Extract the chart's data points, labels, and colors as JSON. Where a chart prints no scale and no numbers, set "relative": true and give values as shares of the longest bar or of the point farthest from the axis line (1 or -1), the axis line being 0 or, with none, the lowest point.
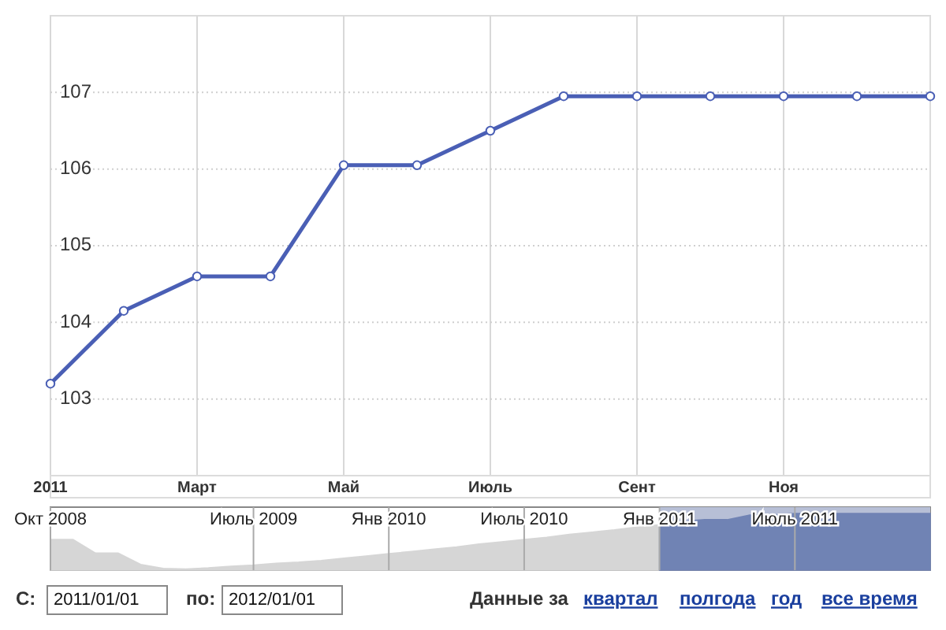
{
  "chart_data": [
    {
      "type": "line",
      "categories": [
        "2011",
        null,
        "Март",
        null,
        "Май",
        null,
        "Июль",
        null,
        "Сент",
        null,
        "Ноя",
        null,
        null
      ],
      "series": [
        {
          "color": "#4a5fb5",
          "values": [
            103.2,
            104.15,
            104.6,
            104.6,
            106.05,
            106.05,
            106.5,
            106.95,
            106.95,
            106.95,
            106.95,
            106.95,
            106.95
          ]
        }
      ],
      "ylim": [
        102,
        108
      ],
      "yticks": [
        103,
        104,
        105,
        106,
        107
      ],
      "grid": true,
      "marker": "circle",
      "line_style": "solid"
    },
    {
      "type": "area",
      "relative": true,
      "categories": [
        "Окт 2008",
        null,
        null,
        null,
        null,
        null,
        null,
        null,
        null,
        "Июль 2009",
        null,
        null,
        null,
        null,
        null,
        "Янв 2010",
        null,
        null,
        null,
        null,
        null,
        "Июль 2010",
        null,
        null,
        null,
        null,
        null,
        "Янв 2011",
        null,
        null,
        null,
        null,
        null,
        "Июль 2011",
        null,
        null,
        null,
        null,
        null,
        null
      ],
      "series": [
        {
          "color": "#d6d6d6",
          "values": [
            0.54,
            0.54,
            0.3,
            0.3,
            0.1,
            0.03,
            0.02,
            0.04,
            0.07,
            0.09,
            0.12,
            0.14,
            0.17,
            0.21,
            0.25,
            0.29,
            0.33,
            0.37,
            0.41,
            0.46,
            0.5,
            0.54,
            0.58,
            0.63,
            0.67,
            0.71,
            0.76,
            0.8,
            null,
            null,
            null,
            null,
            null,
            null,
            null,
            null,
            null,
            null,
            null,
            null
          ]
        },
        {
          "color": "#7083b4",
          "values": [
            null,
            null,
            null,
            null,
            null,
            null,
            null,
            null,
            null,
            null,
            null,
            null,
            null,
            null,
            null,
            null,
            null,
            null,
            null,
            null,
            null,
            null,
            null,
            null,
            null,
            null,
            null,
            0.8,
            0.86,
            0.89,
            0.89,
            0.97,
            0.97,
            1,
            1,
            1,
            1,
            1,
            1,
            1
          ]
        }
      ],
      "grid": "x",
      "annotations": [
        "С:",
        "2011/01/01",
        "по:",
        "2012/01/01",
        "Данные за",
        "квартал",
        "полгода",
        "год",
        "все время"
      ]
    }
  ]
}
